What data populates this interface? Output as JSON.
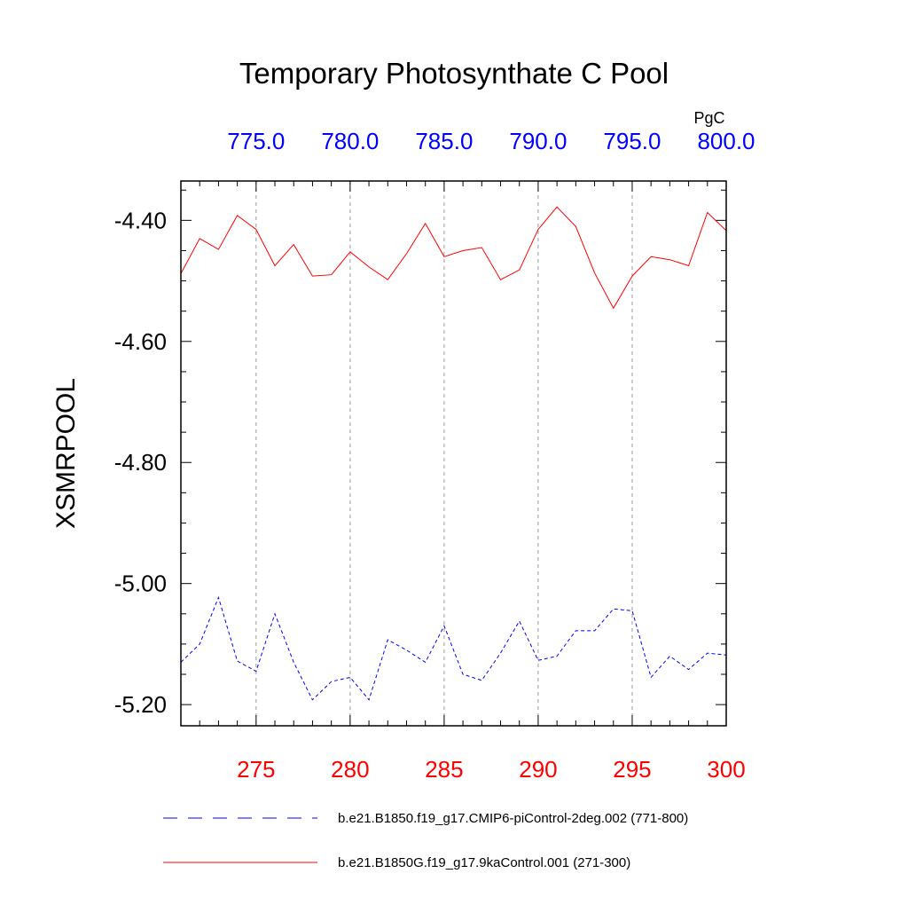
{
  "chart_data": {
    "type": "line",
    "title": "Temporary Photosynthate C Pool",
    "ylabel": "XSMRPOOL",
    "units": "PgC",
    "ylim": [
      -5.235,
      -4.335
    ],
    "yticks": [
      -4.4,
      -4.6,
      -4.8,
      -5.0,
      -5.2
    ],
    "ytick_labels": [
      "-4.40",
      "-4.60",
      "-4.80",
      "-5.00",
      "-5.20"
    ],
    "grid": true,
    "legend_position": "bottom",
    "bottom_axis": {
      "range": [
        271,
        300
      ],
      "ticks": [
        275,
        280,
        285,
        290,
        295,
        300
      ],
      "tick_labels": [
        "275",
        "280",
        "285",
        "290",
        "295",
        "300"
      ],
      "color": "#ff0000"
    },
    "top_axis": {
      "range": [
        771,
        800
      ],
      "ticks": [
        775,
        780,
        785,
        790,
        795,
        800
      ],
      "tick_labels": [
        "775.0",
        "780.0",
        "785.0",
        "790.0",
        "795.0",
        "800.0"
      ],
      "color": "#0000ff"
    },
    "series": [
      {
        "name": "b.e21.B1850.f19_g17.CMIP6-piControl-2deg.002 (771-800)",
        "axis": "top",
        "color": "#0000ff",
        "dash": "dashed",
        "x": [
          771,
          772,
          773,
          774,
          775,
          776,
          777,
          778,
          779,
          780,
          781,
          782,
          783,
          784,
          785,
          786,
          787,
          788,
          789,
          790,
          791,
          792,
          793,
          794,
          795,
          796,
          797,
          798,
          799,
          800
        ],
        "values": [
          -5.13,
          -5.1,
          -5.023,
          -5.128,
          -5.145,
          -5.05,
          -5.13,
          -5.192,
          -5.162,
          -5.155,
          -5.192,
          -5.093,
          -5.11,
          -5.13,
          -5.07,
          -5.15,
          -5.16,
          -5.115,
          -5.062,
          -5.127,
          -5.12,
          -5.078,
          -5.078,
          -5.042,
          -5.045,
          -5.155,
          -5.12,
          -5.142,
          -5.115,
          -5.118
        ]
      },
      {
        "name": "b.e21.B1850G.f19_g17.9kaControl.001 (271-300)",
        "axis": "bottom",
        "color": "#ff0000",
        "dash": "solid",
        "x": [
          271,
          272,
          273,
          274,
          275,
          276,
          277,
          278,
          279,
          280,
          281,
          282,
          283,
          284,
          285,
          286,
          287,
          288,
          289,
          290,
          291,
          292,
          293,
          294,
          295,
          296,
          297,
          298,
          299,
          300
        ],
        "values": [
          -4.488,
          -4.43,
          -4.448,
          -4.392,
          -4.415,
          -4.475,
          -4.44,
          -4.492,
          -4.49,
          -4.452,
          -4.477,
          -4.498,
          -4.455,
          -4.405,
          -4.46,
          -4.45,
          -4.445,
          -4.498,
          -4.482,
          -4.415,
          -4.378,
          -4.41,
          -4.487,
          -4.545,
          -4.492,
          -4.46,
          -4.465,
          -4.475,
          -4.387,
          -4.417
        ]
      }
    ]
  }
}
